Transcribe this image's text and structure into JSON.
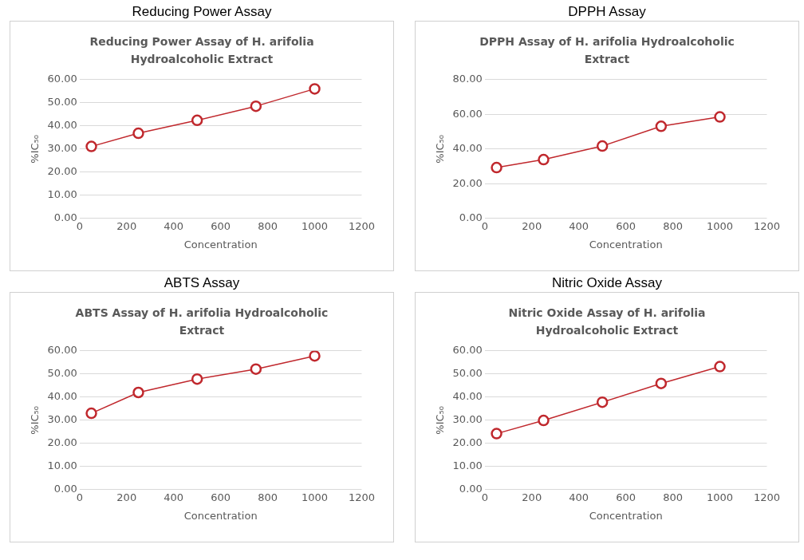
{
  "chart_data": [
    {
      "type": "line",
      "title": "Reducing Power Assay",
      "subtitle": "Reducing Power Assay of H. arifolia Hydroalcoholic Extract",
      "xlabel": "Concentration",
      "ylabel": "%IC₅₀",
      "x": [
        50,
        250,
        500,
        750,
        1000
      ],
      "series": [
        {
          "color": "#c0282d",
          "values": [
            31.1,
            36.8,
            42.4,
            48.5,
            56.0
          ]
        }
      ],
      "xlim": [
        0,
        1200
      ],
      "xticks": [
        0,
        200,
        400,
        600,
        800,
        1000,
        1200
      ],
      "ylim": [
        0,
        60
      ],
      "yticks": [
        {
          "value": 0,
          "label": "0.00"
        },
        {
          "value": 10,
          "label": "10.00"
        },
        {
          "value": 20,
          "label": "20.00"
        },
        {
          "value": 30,
          "label": "30.00"
        },
        {
          "value": 40,
          "label": "40.00"
        },
        {
          "value": 50,
          "label": "50.00"
        },
        {
          "value": 60,
          "label": "60.00"
        }
      ],
      "grid": "y",
      "marker": "circle"
    },
    {
      "type": "line",
      "title": "DPPH Assay",
      "subtitle": "DPPH Assay of H. arifolia Hydroalcoholic Extract",
      "xlabel": "Concentration",
      "ylabel": "%IC₅₀",
      "x": [
        50,
        250,
        500,
        750,
        1000
      ],
      "series": [
        {
          "color": "#c0282d",
          "values": [
            29.3,
            33.9,
            41.7,
            53.1,
            58.5
          ]
        }
      ],
      "xlim": [
        0,
        1200
      ],
      "xticks": [
        0,
        200,
        400,
        600,
        800,
        1000,
        1200
      ],
      "ylim": [
        0,
        80
      ],
      "yticks": [
        {
          "value": 0,
          "label": "0.00"
        },
        {
          "value": 20,
          "label": "20.00"
        },
        {
          "value": 40,
          "label": "40.00"
        },
        {
          "value": 60,
          "label": "60.00"
        },
        {
          "value": 80,
          "label": "80.00"
        }
      ],
      "grid": "y",
      "marker": "circle"
    },
    {
      "type": "line",
      "title": "ABTS Assay",
      "subtitle": "ABTS Assay of H. arifolia Hydroalcoholic Extract",
      "xlabel": "Concentration",
      "ylabel": "%IC₅₀",
      "x": [
        50,
        250,
        500,
        750,
        1000
      ],
      "series": [
        {
          "color": "#c0282d",
          "values": [
            33.0,
            42.0,
            47.8,
            52.1,
            57.8
          ]
        }
      ],
      "xlim": [
        0,
        1200
      ],
      "xticks": [
        0,
        200,
        400,
        600,
        800,
        1000,
        1200
      ],
      "ylim": [
        0,
        60
      ],
      "yticks": [
        {
          "value": 0,
          "label": "0.00"
        },
        {
          "value": 10,
          "label": "10.00"
        },
        {
          "value": 20,
          "label": "20.00"
        },
        {
          "value": 30,
          "label": "30.00"
        },
        {
          "value": 40,
          "label": "40.00"
        },
        {
          "value": 50,
          "label": "50.00"
        },
        {
          "value": 60,
          "label": "60.00"
        }
      ],
      "grid": "y",
      "marker": "circle"
    },
    {
      "type": "line",
      "title": "Nitric Oxide Assay",
      "subtitle": "Nitric Oxide Assay of H. arifolia Hydroalcoholic Extract",
      "xlabel": "Concentration",
      "ylabel": "%IC₅₀",
      "x": [
        50,
        250,
        500,
        750,
        1000
      ],
      "series": [
        {
          "color": "#c0282d",
          "values": [
            24.2,
            29.9,
            37.8,
            45.9,
            53.2
          ]
        }
      ],
      "xlim": [
        0,
        1200
      ],
      "xticks": [
        0,
        200,
        400,
        600,
        800,
        1000,
        1200
      ],
      "ylim": [
        0,
        60
      ],
      "yticks": [
        {
          "value": 0,
          "label": "0.00"
        },
        {
          "value": 10,
          "label": "10.00"
        },
        {
          "value": 20,
          "label": "20.00"
        },
        {
          "value": 30,
          "label": "30.00"
        },
        {
          "value": 40,
          "label": "40.00"
        },
        {
          "value": 50,
          "label": "50.00"
        },
        {
          "value": 60,
          "label": "60.00"
        }
      ],
      "grid": "y",
      "marker": "circle"
    }
  ]
}
